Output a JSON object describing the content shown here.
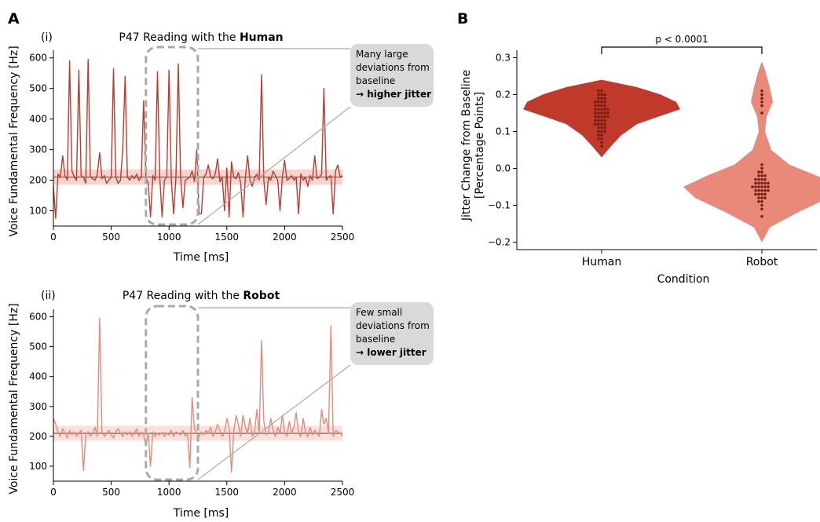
{
  "panels": {
    "a_letter": "A",
    "b_letter": "B"
  },
  "chart_data": [
    {
      "type": "line",
      "panel": "A",
      "subpanel_label": "(i)",
      "title_prefix": "P47 Reading with the ",
      "title_bold": "Human",
      "xlabel": "Time [ms]",
      "ylabel": "Voice Fundamental Frequency [Hz]",
      "xlim": [
        0,
        2500
      ],
      "ylim": [
        50,
        625
      ],
      "xticks": [
        0,
        500,
        1000,
        1500,
        2000,
        2500
      ],
      "yticks": [
        100,
        200,
        300,
        400,
        500,
        600
      ],
      "baseline": 210,
      "baseline_band": [
        185,
        235
      ],
      "highlight_x": [
        800,
        1250
      ],
      "series_color": "#c0392b",
      "band_color": "#f6d5cf",
      "callout_lines": [
        "Many large",
        "deviations from",
        "baseline"
      ],
      "callout_bold": "→ higher jitter",
      "x": [
        0,
        20,
        40,
        60,
        80,
        100,
        120,
        140,
        160,
        180,
        200,
        220,
        240,
        260,
        280,
        300,
        320,
        340,
        360,
        380,
        400,
        420,
        440,
        460,
        480,
        500,
        520,
        540,
        560,
        580,
        600,
        620,
        640,
        660,
        680,
        700,
        720,
        740,
        760,
        780,
        800,
        820,
        840,
        860,
        880,
        900,
        920,
        940,
        960,
        980,
        1000,
        1020,
        1040,
        1060,
        1080,
        1100,
        1120,
        1140,
        1160,
        1180,
        1200,
        1220,
        1240,
        1260,
        1280,
        1300,
        1320,
        1340,
        1360,
        1380,
        1400,
        1420,
        1440,
        1460,
        1480,
        1500,
        1520,
        1540,
        1560,
        1580,
        1600,
        1620,
        1640,
        1660,
        1680,
        1700,
        1720,
        1740,
        1760,
        1780,
        1800,
        1820,
        1840,
        1860,
        1880,
        1900,
        1920,
        1940,
        1960,
        1980,
        2000,
        2020,
        2040,
        2060,
        2080,
        2100,
        2120,
        2140,
        2160,
        2180,
        2200,
        2220,
        2240,
        2260,
        2280,
        2300,
        2320,
        2340,
        2360,
        2380,
        2400,
        2420,
        2440,
        2460,
        2480,
        2500
      ],
      "y": [
        180,
        75,
        220,
        210,
        280,
        215,
        200,
        590,
        230,
        210,
        200,
        560,
        215,
        210,
        190,
        595,
        210,
        205,
        200,
        220,
        290,
        205,
        215,
        190,
        200,
        210,
        565,
        210,
        190,
        200,
        300,
        540,
        210,
        200,
        215,
        205,
        220,
        200,
        210,
        460,
        210,
        190,
        80,
        215,
        200,
        555,
        210,
        80,
        200,
        210,
        560,
        200,
        90,
        210,
        580,
        210,
        110,
        200,
        205,
        210,
        230,
        195,
        300,
        90,
        90,
        210,
        220,
        250,
        210,
        205,
        220,
        270,
        195,
        210,
        100,
        240,
        80,
        260,
        210,
        205,
        225,
        190,
        80,
        210,
        280,
        200,
        180,
        210,
        220,
        200,
        545,
        200,
        120,
        210,
        200,
        230,
        215,
        200,
        100,
        210,
        265,
        200,
        205,
        215,
        200,
        210,
        90,
        220,
        200,
        210,
        180,
        215,
        200,
        280,
        205,
        210,
        220,
        500,
        200,
        210,
        215,
        90,
        230,
        250,
        210,
        215
      ]
    },
    {
      "type": "line",
      "panel": "A",
      "subpanel_label": "(ii)",
      "title_prefix": "P47 Reading with the ",
      "title_bold": "Robot",
      "xlabel": "Time [ms]",
      "ylabel": "Voice Fundamental Frequency [Hz]",
      "xlim": [
        0,
        2500
      ],
      "ylim": [
        50,
        625
      ],
      "xticks": [
        0,
        500,
        1000,
        1500,
        2000,
        2500
      ],
      "yticks": [
        100,
        200,
        300,
        400,
        500,
        600
      ],
      "baseline": 210,
      "baseline_band": [
        185,
        235
      ],
      "highlight_x": [
        800,
        1250
      ],
      "series_color": "#e8897a",
      "band_color": "#f9e0da",
      "callout_lines": [
        "Few small",
        "deviations from",
        "baseline"
      ],
      "callout_bold": "→ lower jitter",
      "x": [
        0,
        20,
        40,
        60,
        80,
        100,
        120,
        140,
        160,
        180,
        200,
        220,
        240,
        260,
        280,
        300,
        320,
        340,
        360,
        380,
        400,
        420,
        440,
        460,
        480,
        500,
        520,
        540,
        560,
        580,
        600,
        620,
        640,
        660,
        680,
        700,
        720,
        740,
        760,
        780,
        800,
        820,
        840,
        860,
        880,
        900,
        920,
        940,
        960,
        980,
        1000,
        1020,
        1040,
        1060,
        1080,
        1100,
        1120,
        1140,
        1160,
        1180,
        1200,
        1220,
        1240,
        1260,
        1280,
        1300,
        1320,
        1340,
        1360,
        1380,
        1400,
        1420,
        1440,
        1460,
        1480,
        1500,
        1520,
        1540,
        1560,
        1580,
        1600,
        1620,
        1640,
        1660,
        1680,
        1700,
        1720,
        1740,
        1760,
        1780,
        1800,
        1820,
        1840,
        1860,
        1880,
        1900,
        1920,
        1940,
        1960,
        1980,
        2000,
        2020,
        2040,
        2060,
        2080,
        2100,
        2120,
        2140,
        2160,
        2180,
        2200,
        2220,
        2240,
        2260,
        2280,
        2300,
        2320,
        2340,
        2360,
        2380,
        2400,
        2420,
        2440,
        2460,
        2480,
        2500
      ],
      "y": [
        260,
        240,
        215,
        200,
        225,
        210,
        195,
        220,
        205,
        215,
        200,
        210,
        220,
        85,
        205,
        215,
        200,
        210,
        230,
        200,
        595,
        215,
        200,
        210,
        220,
        205,
        195,
        215,
        225,
        210,
        200,
        215,
        205,
        215,
        200,
        210,
        225,
        200,
        215,
        205,
        170,
        210,
        100,
        215,
        200,
        210,
        205,
        215,
        200,
        210,
        205,
        220,
        200,
        215,
        210,
        205,
        220,
        200,
        210,
        95,
        330,
        225,
        210,
        200,
        215,
        205,
        220,
        210,
        230,
        200,
        215,
        240,
        220,
        200,
        210,
        260,
        230,
        80,
        215,
        270,
        240,
        200,
        270,
        230,
        210,
        260,
        200,
        215,
        290,
        210,
        520,
        250,
        205,
        215,
        260,
        220,
        200,
        230,
        210,
        270,
        215,
        200,
        250,
        210,
        230,
        280,
        210,
        200,
        260,
        215,
        200,
        230,
        205,
        220,
        210,
        200,
        290,
        240,
        260,
        210,
        570,
        200,
        220,
        215,
        210,
        200
      ]
    },
    {
      "type": "violin",
      "panel": "B",
      "xlabel": "Condition",
      "ylabel": "Jitter Change from Baseline [Percentage Points]",
      "categories": [
        "Human",
        "Robot"
      ],
      "ylim": [
        -0.22,
        0.32
      ],
      "yticks": [
        -0.2,
        -0.1,
        0.0,
        0.1,
        0.2,
        0.3
      ],
      "ytick_labels": [
        "−0.2",
        "−0.1",
        "0.0",
        "0.1",
        "0.2",
        "0.3"
      ],
      "significance_label": "p < 0.0001",
      "colors": {
        "Human": "#c0392b",
        "Robot": "#e8897a",
        "points": "#7a1e16"
      },
      "violins": [
        {
          "name": "Human",
          "range": [
            0.03,
            0.24
          ],
          "profile": [
            [
              0.03,
              0.0
            ],
            [
              0.06,
              0.12
            ],
            [
              0.09,
              0.25
            ],
            [
              0.12,
              0.45
            ],
            [
              0.14,
              0.72
            ],
            [
              0.16,
              1.0
            ],
            [
              0.18,
              0.95
            ],
            [
              0.2,
              0.75
            ],
            [
              0.22,
              0.45
            ],
            [
              0.24,
              0.0
            ]
          ],
          "points": [
            0.06,
            0.07,
            0.08,
            0.08,
            0.09,
            0.09,
            0.1,
            0.1,
            0.1,
            0.11,
            0.11,
            0.11,
            0.12,
            0.12,
            0.12,
            0.12,
            0.13,
            0.13,
            0.13,
            0.13,
            0.14,
            0.14,
            0.14,
            0.14,
            0.14,
            0.15,
            0.15,
            0.15,
            0.15,
            0.15,
            0.16,
            0.16,
            0.16,
            0.16,
            0.16,
            0.17,
            0.17,
            0.17,
            0.17,
            0.18,
            0.18,
            0.18,
            0.18,
            0.19,
            0.19,
            0.19,
            0.2,
            0.2,
            0.2,
            0.21,
            0.21
          ]
        },
        {
          "name": "Robot",
          "range": [
            -0.2,
            0.29
          ],
          "profile": [
            [
              -0.2,
              0.0
            ],
            [
              -0.16,
              0.1
            ],
            [
              -0.12,
              0.45
            ],
            [
              -0.08,
              0.85
            ],
            [
              -0.05,
              1.0
            ],
            [
              -0.02,
              0.7
            ],
            [
              0.01,
              0.35
            ],
            [
              0.05,
              0.12
            ],
            [
              0.1,
              0.04
            ],
            [
              0.14,
              0.06
            ],
            [
              0.18,
              0.14
            ],
            [
              0.22,
              0.1
            ],
            [
              0.26,
              0.05
            ],
            [
              0.29,
              0.0
            ]
          ],
          "points": [
            -0.13,
            -0.11,
            -0.1,
            -0.09,
            -0.09,
            -0.08,
            -0.08,
            -0.08,
            -0.07,
            -0.07,
            -0.07,
            -0.07,
            -0.06,
            -0.06,
            -0.06,
            -0.06,
            -0.06,
            -0.05,
            -0.05,
            -0.05,
            -0.05,
            -0.05,
            -0.05,
            -0.04,
            -0.04,
            -0.04,
            -0.04,
            -0.04,
            -0.03,
            -0.03,
            -0.03,
            -0.03,
            -0.02,
            -0.02,
            -0.02,
            -0.01,
            -0.01,
            0.0,
            0.01,
            0.15,
            0.17,
            0.18,
            0.19,
            0.2,
            0.21
          ]
        }
      ]
    }
  ]
}
